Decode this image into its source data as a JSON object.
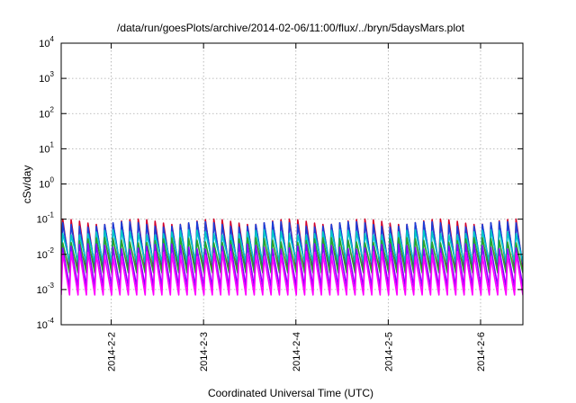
{
  "chart_data": {
    "type": "line",
    "title": "/data/run/goesPlots/archive/2014-02-06/11:00/flux/../bryn/5daysMars.plot",
    "xlabel": "Coordinated Universal Time (UTC)",
    "ylabel": "cSv/day",
    "yscale": "log",
    "ylim": [
      0.0001,
      10000
    ],
    "y_ticks": [
      {
        "base": "10",
        "exp": "4"
      },
      {
        "base": "10",
        "exp": "3"
      },
      {
        "base": "10",
        "exp": "2"
      },
      {
        "base": "10",
        "exp": "1"
      },
      {
        "base": "10",
        "exp": "0"
      },
      {
        "base": "10",
        "exp": "-1"
      },
      {
        "base": "10",
        "exp": "-2"
      },
      {
        "base": "10",
        "exp": "-3"
      },
      {
        "base": "10",
        "exp": "-4"
      }
    ],
    "xlim": [
      "2014-02-01 11:00",
      "2014-02-06 11:00"
    ],
    "x_ticks": [
      "2014-2-2",
      "2014-2-3",
      "2014-2-4",
      "2014-2-5",
      "2014-2-6"
    ],
    "grid": true,
    "cycles_per_day": 11,
    "series": [
      {
        "color": "#d4002a",
        "peak": 0.1,
        "trough": 0.004
      },
      {
        "color": "#1a3fd9",
        "peak": 0.085,
        "trough": 0.005
      },
      {
        "color": "#00c8c8",
        "peak": 0.05,
        "trough": 0.006
      },
      {
        "color": "#2aa02a",
        "peak": 0.03,
        "trough": 0.003
      },
      {
        "color": "#8b00ff",
        "peak": 0.02,
        "trough": 0.0012
      },
      {
        "color": "#ff00ff",
        "peak": 0.012,
        "trough": 0.0007
      }
    ]
  }
}
